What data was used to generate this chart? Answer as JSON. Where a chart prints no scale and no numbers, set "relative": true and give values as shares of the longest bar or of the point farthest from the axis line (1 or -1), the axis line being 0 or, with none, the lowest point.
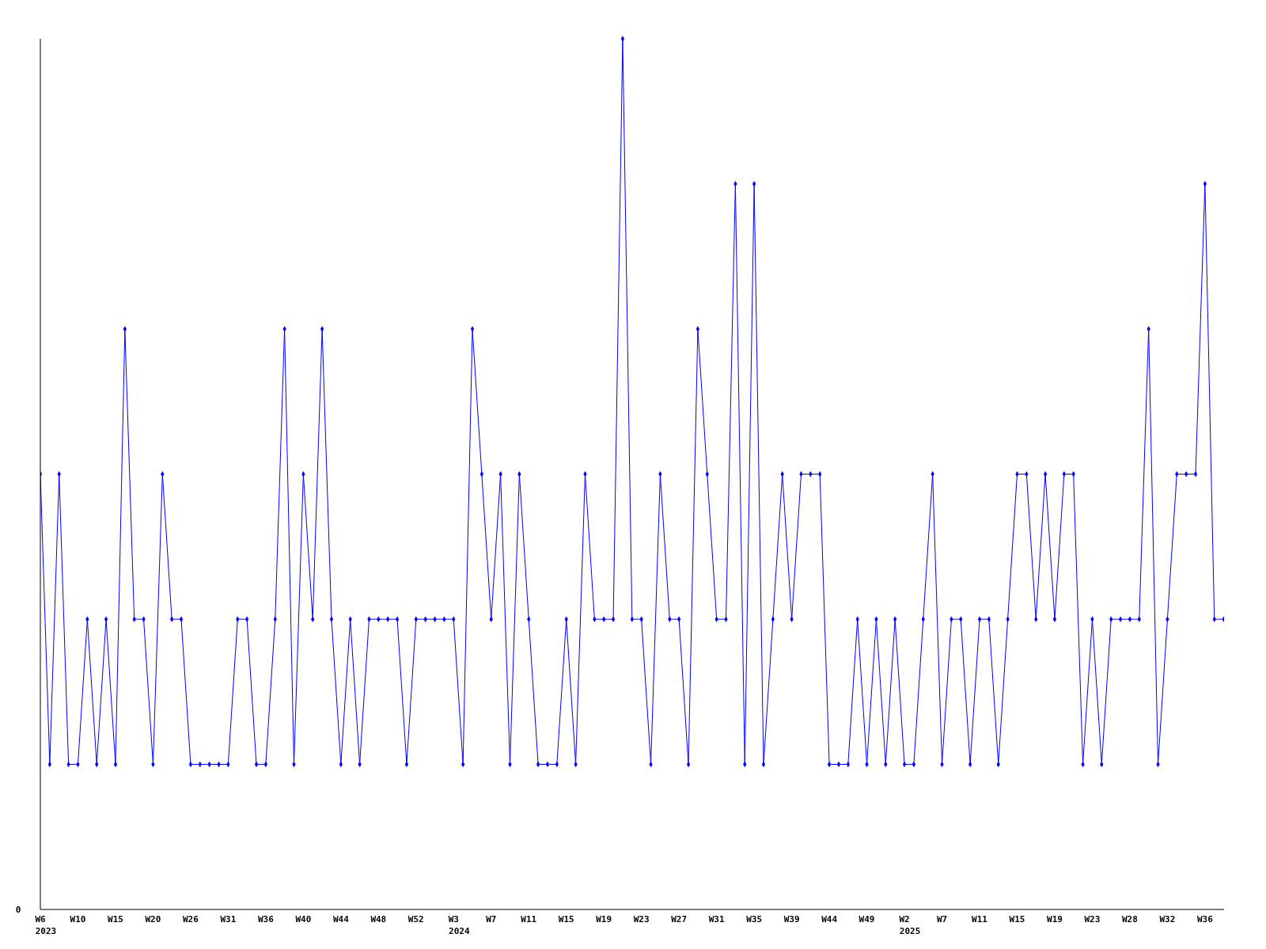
{
  "chart_data": {
    "type": "line",
    "relative": true,
    "marker": "diamond",
    "line_style": "solid",
    "annotations": [
      "0",
      "2023",
      "2024",
      "2025"
    ],
    "categories": [
      "W6",
      null,
      null,
      null,
      "W10",
      null,
      null,
      null,
      "W15",
      null,
      null,
      null,
      "W20",
      null,
      null,
      null,
      "W26",
      null,
      null,
      null,
      "W31",
      null,
      null,
      null,
      "W36",
      null,
      null,
      null,
      "W40",
      null,
      null,
      null,
      "W44",
      null,
      null,
      null,
      "W48",
      null,
      null,
      null,
      "W52",
      null,
      null,
      null,
      "W3",
      null,
      null,
      null,
      "W7",
      null,
      null,
      null,
      "W11",
      null,
      null,
      null,
      "W15",
      null,
      null,
      null,
      "W19",
      null,
      null,
      null,
      "W23",
      null,
      null,
      null,
      "W27",
      null,
      null,
      null,
      "W31",
      null,
      null,
      null,
      "W35",
      null,
      null,
      null,
      "W39",
      null,
      null,
      null,
      "W44",
      null,
      null,
      null,
      "W49",
      null,
      null,
      null,
      "W2",
      null,
      null,
      null,
      "W7",
      null,
      null,
      null,
      "W11",
      null,
      null,
      null,
      "W15",
      null,
      null,
      null,
      "W19",
      null,
      null,
      null,
      "W23",
      null,
      null,
      null,
      "W28",
      null,
      null,
      null,
      "W32",
      null,
      null,
      null,
      "W36",
      null,
      null
    ],
    "series": [
      {
        "color": "#0000ff",
        "values": [
          0.5,
          0.1667,
          0.5,
          0.1667,
          0.1667,
          0.3333,
          0.1667,
          0.3333,
          0.1667,
          0.6667,
          0.3333,
          0.3333,
          0.1667,
          0.5,
          0.3333,
          0.3333,
          0.1667,
          0.1667,
          0.1667,
          0.1667,
          0.1667,
          0.3333,
          0.3333,
          0.1667,
          0.1667,
          0.3333,
          0.6667,
          0.1667,
          0.5,
          0.3333,
          0.6667,
          0.3333,
          0.1667,
          0.3333,
          0.1667,
          0.3333,
          0.3333,
          0.3333,
          0.3333,
          0.1667,
          0.3333,
          0.3333,
          0.3333,
          0.3333,
          0.3333,
          0.1667,
          0.6667,
          0.5,
          0.3333,
          0.5,
          0.1667,
          0.5,
          0.3333,
          0.1667,
          0.1667,
          0.1667,
          0.3333,
          0.1667,
          0.5,
          0.3333,
          0.3333,
          0.3333,
          1,
          0.3333,
          0.3333,
          0.1667,
          0.5,
          0.3333,
          0.3333,
          0.1667,
          0.6667,
          0.5,
          0.3333,
          0.3333,
          0.8333,
          0.1667,
          0.8333,
          0.1667,
          0.3333,
          0.5,
          0.3333,
          0.5,
          0.5,
          0.5,
          0.1667,
          0.1667,
          0.1667,
          0.3333,
          0.1667,
          0.3333,
          0.1667,
          0.3333,
          0.1667,
          0.1667,
          0.3333,
          0.5,
          0.1667,
          0.3333,
          0.3333,
          0.1667,
          0.3333,
          0.3333,
          0.1667,
          0.3333,
          0.5,
          0.5,
          0.3333,
          0.5,
          0.3333,
          0.5,
          0.5,
          0.1667,
          0.3333,
          0.1667,
          0.3333,
          0.3333,
          0.3333,
          0.3333,
          0.6667,
          0.1667,
          0.3333,
          0.5,
          0.5,
          0.5,
          0.8333,
          0.3333,
          0.3333
        ]
      }
    ]
  }
}
